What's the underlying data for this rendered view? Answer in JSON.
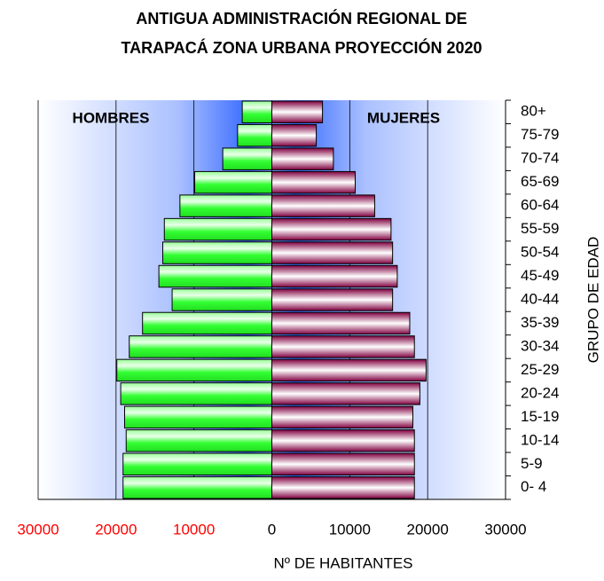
{
  "chart_data": {
    "type": "pyramid",
    "title": [
      "ANTIGUA ADMINISTRACIÓN REGIONAL DE",
      "TARAPACÁ ZONA URBANA PROYECCIÓN 2020"
    ],
    "x_label": "Nº DE HABITANTES",
    "y_label": "GRUPO DE EDAD",
    "categories": [
      "0- 4",
      "5-9",
      "10-14",
      "15-19",
      "20-24",
      "25-29",
      "30-34",
      "35-39",
      "40-44",
      "45-49",
      "50-54",
      "55-59",
      "60-64",
      "65-69",
      "70-74",
      "75-79",
      "80+"
    ],
    "series": [
      {
        "name": "HOMBRES",
        "color": "#33ff33",
        "values": [
          -19100,
          -19100,
          -18700,
          -18900,
          -19400,
          -19900,
          -18300,
          -16600,
          -12800,
          -14500,
          -14000,
          -13800,
          -11800,
          -9900,
          -6300,
          -4400,
          -3800
        ]
      },
      {
        "name": "MUJERES",
        "color": "#800040",
        "values": [
          18300,
          18300,
          18300,
          18100,
          19000,
          19800,
          18300,
          17700,
          15500,
          16100,
          15500,
          15300,
          13200,
          10700,
          7900,
          5700,
          6500
        ]
      }
    ],
    "xlim": [
      -30000,
      30000
    ],
    "xticks": [
      {
        "value": -30000,
        "label": "30000"
      },
      {
        "value": -20000,
        "label": "20000"
      },
      {
        "value": -10000,
        "label": "10000"
      },
      0,
      10000,
      20000,
      30000
    ],
    "negative_tick_color": "#ff0000",
    "grid": true
  }
}
